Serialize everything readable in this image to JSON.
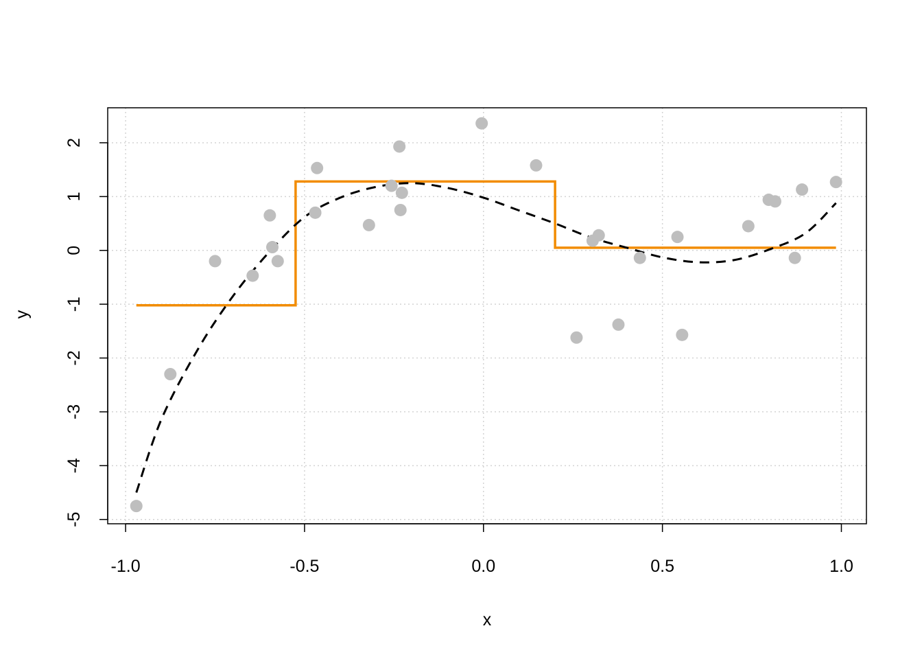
{
  "chart_data": {
    "type": "scatter",
    "title": "",
    "xlabel": "x",
    "ylabel": "y",
    "xlim": [
      -1.05,
      1.07
    ],
    "ylim": [
      -5.08,
      2.65
    ],
    "x_ticks": [
      -1.0,
      -0.5,
      0.0,
      0.5,
      1.0
    ],
    "x_tick_labels": [
      "-1.0",
      "-0.5",
      "0.0",
      "0.5",
      "1.0"
    ],
    "y_ticks": [
      -5,
      -4,
      -3,
      -2,
      -1,
      0,
      1,
      2
    ],
    "y_tick_labels": [
      "-5",
      "-4",
      "-3",
      "-2",
      "-1",
      "0",
      "1",
      "2"
    ],
    "grid": true,
    "colors": {
      "points": "#bebebe",
      "step": "#f28c00",
      "curve": "#000000",
      "grid": "#d3d3d3"
    },
    "points": [
      {
        "x": -0.97,
        "y": -4.75
      },
      {
        "x": -0.875,
        "y": -2.3
      },
      {
        "x": -0.75,
        "y": -0.2
      },
      {
        "x": -0.645,
        "y": -0.47
      },
      {
        "x": -0.597,
        "y": 0.65
      },
      {
        "x": -0.59,
        "y": 0.06
      },
      {
        "x": -0.575,
        "y": -0.2
      },
      {
        "x": -0.47,
        "y": 0.7
      },
      {
        "x": -0.465,
        "y": 1.53
      },
      {
        "x": -0.32,
        "y": 0.47
      },
      {
        "x": -0.257,
        "y": 1.2
      },
      {
        "x": -0.235,
        "y": 1.93
      },
      {
        "x": -0.232,
        "y": 0.75
      },
      {
        "x": -0.228,
        "y": 1.07
      },
      {
        "x": -0.005,
        "y": 2.36
      },
      {
        "x": 0.147,
        "y": 1.58
      },
      {
        "x": 0.26,
        "y": -1.62
      },
      {
        "x": 0.305,
        "y": 0.18
      },
      {
        "x": 0.322,
        "y": 0.28
      },
      {
        "x": 0.377,
        "y": -1.38
      },
      {
        "x": 0.437,
        "y": -0.14
      },
      {
        "x": 0.542,
        "y": 0.25
      },
      {
        "x": 0.555,
        "y": -1.57
      },
      {
        "x": 0.74,
        "y": 0.45
      },
      {
        "x": 0.797,
        "y": 0.94
      },
      {
        "x": 0.815,
        "y": 0.91
      },
      {
        "x": 0.87,
        "y": -0.14
      },
      {
        "x": 0.89,
        "y": 1.13
      },
      {
        "x": 0.985,
        "y": 1.27
      }
    ],
    "step_function": {
      "x_start": -0.97,
      "x_end": 0.985,
      "breaks": [
        -0.525,
        0.2
      ],
      "levels": [
        -1.02,
        1.28,
        0.05
      ]
    },
    "curve": {
      "x": [
        -0.97,
        -0.9,
        -0.8,
        -0.7,
        -0.6,
        -0.5,
        -0.4,
        -0.3,
        -0.2,
        -0.1,
        0.0,
        0.1,
        0.2,
        0.3,
        0.4,
        0.5,
        0.6,
        0.7,
        0.8,
        0.9,
        0.985
      ],
      "y": [
        -4.5,
        -3.14,
        -1.86,
        -0.85,
        -0.04,
        0.62,
        0.98,
        1.18,
        1.25,
        1.16,
        0.98,
        0.74,
        0.5,
        0.24,
        0.05,
        -0.13,
        -0.22,
        -0.18,
        0.02,
        0.32,
        0.88
      ]
    }
  }
}
